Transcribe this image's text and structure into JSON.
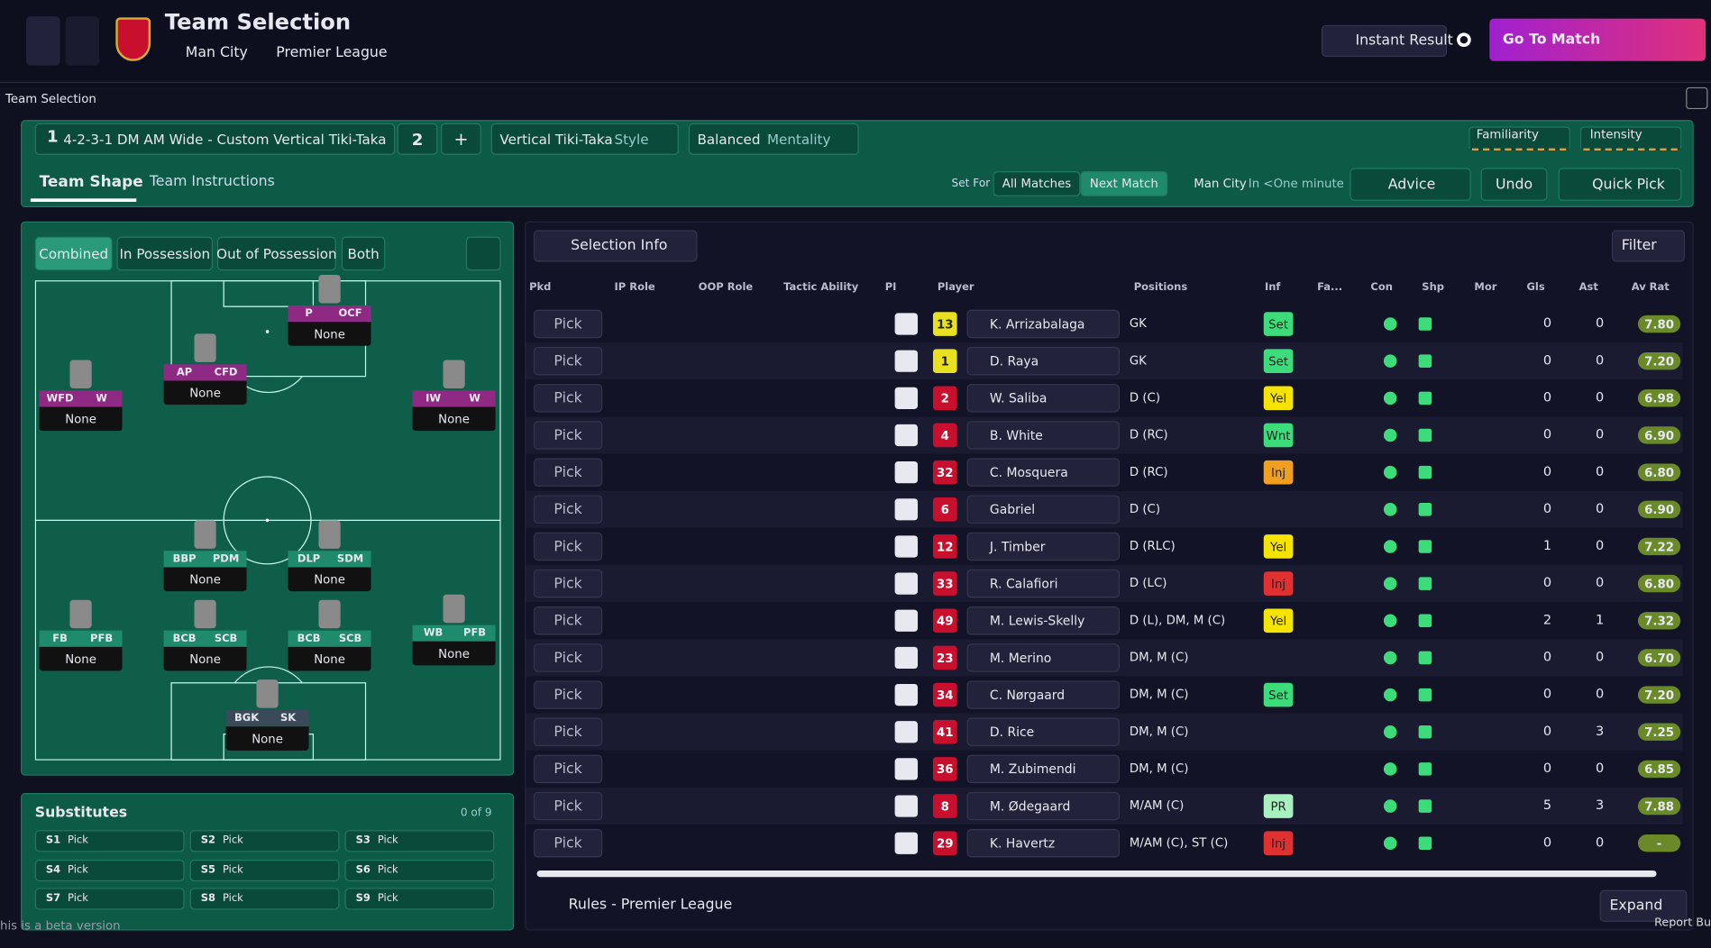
{
  "header": {
    "title": "Team Selection",
    "opponent": "Man City",
    "competition": "Premier League",
    "instant_result": "Instant Result",
    "go_to_match": "Go To Match"
  },
  "panel_title": "Team Selection",
  "tactic": {
    "slot": "1",
    "formation": "4-2-3-1 DM AM Wide - Custom Vertical Tiki-Taka",
    "slot2": "2",
    "add": "+",
    "style": "Vertical Tiki-Taka",
    "style_label": "Style",
    "mentality": "Balanced",
    "mentality_label": "Mentality",
    "familiarity": "Familiarity",
    "intensity": "Intensity"
  },
  "tabs": [
    "Team Shape",
    "Team Instructions"
  ],
  "set_for": {
    "label": "Set For",
    "options": [
      "All Matches",
      "Next Match"
    ]
  },
  "next_opponent": {
    "team": "Man City",
    "time": "In <One minute"
  },
  "buttons": {
    "advice": "Advice",
    "undo": "Undo",
    "quick_pick": "Quick Pick"
  },
  "view_tabs": [
    "Combined",
    "In Possession",
    "Out of Possession",
    "Both"
  ],
  "pitch": {
    "positions": [
      {
        "roles": [
          "P",
          "OCF"
        ],
        "player": "None",
        "color": "#8e2a84"
      },
      {
        "roles": [
          "AP",
          "CFD"
        ],
        "player": "None",
        "color": "#8e2a84"
      },
      {
        "roles": [
          "WFD",
          "W"
        ],
        "player": "None",
        "color": "#8e2a84"
      },
      {
        "roles": [
          "IW",
          "W"
        ],
        "player": "None",
        "color": "#8e2a84"
      },
      {
        "roles": [
          "BBP",
          "PDM"
        ],
        "player": "None",
        "color": "#1f8a6c"
      },
      {
        "roles": [
          "DLP",
          "SDM"
        ],
        "player": "None",
        "color": "#1f8a6c"
      },
      {
        "roles": [
          "FB",
          "PFB"
        ],
        "player": "None",
        "color": "#1f8a6c"
      },
      {
        "roles": [
          "BCB",
          "SCB"
        ],
        "player": "None",
        "color": "#1f8a6c"
      },
      {
        "roles": [
          "BCB",
          "SCB"
        ],
        "player": "None",
        "color": "#1f8a6c"
      },
      {
        "roles": [
          "WB",
          "PFB"
        ],
        "player": "None",
        "color": "#1f8a6c"
      },
      {
        "roles": [
          "BGK",
          "SK"
        ],
        "player": "None",
        "color": "#3a4a58"
      }
    ]
  },
  "substitutes": {
    "title": "Substitutes",
    "count": "0 of 9",
    "slots": [
      {
        "slot": "S1",
        "value": "Pick"
      },
      {
        "slot": "S2",
        "value": "Pick"
      },
      {
        "slot": "S3",
        "value": "Pick"
      },
      {
        "slot": "S4",
        "value": "Pick"
      },
      {
        "slot": "S5",
        "value": "Pick"
      },
      {
        "slot": "S6",
        "value": "Pick"
      },
      {
        "slot": "S7",
        "value": "Pick"
      },
      {
        "slot": "S8",
        "value": "Pick"
      },
      {
        "slot": "S9",
        "value": "Pick"
      }
    ]
  },
  "beta_note": "his is a beta version",
  "selection_info": "Selection Info",
  "filter": "Filter",
  "table": {
    "columns": [
      "Pkd",
      "IP Role",
      "OOP Role",
      "Tactic Ability",
      "PI",
      "Player",
      "Positions",
      "Inf",
      "Fa...",
      "Con",
      "Shp",
      "Mor",
      "Gls",
      "Ast",
      "Av Rat"
    ],
    "rows": [
      {
        "pick": "Pick",
        "number": "13",
        "player": "K. Arrizabalaga",
        "positions": "GK",
        "inf": {
          "label": "Set",
          "color": "#3ddc7a"
        },
        "goals": 0,
        "assists": 0,
        "rating": "7.80"
      },
      {
        "pick": "Pick",
        "number": "1",
        "player": "D. Raya",
        "positions": "GK",
        "inf": {
          "label": "Set",
          "color": "#3ddc7a"
        },
        "goals": 0,
        "assists": 0,
        "rating": "7.20"
      },
      {
        "pick": "Pick",
        "number": "2",
        "player": "W. Saliba",
        "positions": "D (C)",
        "inf": {
          "label": "Yel",
          "color": "#f5e400"
        },
        "goals": 0,
        "assists": 0,
        "rating": "6.98"
      },
      {
        "pick": "Pick",
        "number": "4",
        "player": "B. White",
        "positions": "D (RC)",
        "inf": {
          "label": "Wnt",
          "color": "#3ddc7a"
        },
        "goals": 0,
        "assists": 0,
        "rating": "6.90"
      },
      {
        "pick": "Pick",
        "number": "32",
        "player": "C. Mosquera",
        "positions": "D (RC)",
        "inf": {
          "label": "Inj",
          "color": "#f0a020"
        },
        "goals": 0,
        "assists": 0,
        "rating": "6.80"
      },
      {
        "pick": "Pick",
        "number": "6",
        "player": "Gabriel",
        "positions": "D (C)",
        "goals": 0,
        "assists": 0,
        "rating": "6.90"
      },
      {
        "pick": "Pick",
        "number": "12",
        "player": "J. Timber",
        "positions": "D (RLC)",
        "inf": {
          "label": "Yel",
          "color": "#f5e400"
        },
        "goals": 1,
        "assists": 0,
        "rating": "7.22"
      },
      {
        "pick": "Pick",
        "number": "33",
        "player": "R. Calafiori",
        "positions": "D (LC)",
        "inf": {
          "label": "Inj",
          "color": "#e03030"
        },
        "goals": 0,
        "assists": 0,
        "rating": "6.80"
      },
      {
        "pick": "Pick",
        "number": "49",
        "player": "M. Lewis-Skelly",
        "positions": "D (L), DM, M (C)",
        "inf": {
          "label": "Yel",
          "color": "#f5e400"
        },
        "goals": 2,
        "assists": 1,
        "rating": "7.32"
      },
      {
        "pick": "Pick",
        "number": "23",
        "player": "M. Merino",
        "positions": "DM, M (C)",
        "goals": 0,
        "assists": 0,
        "rating": "6.70"
      },
      {
        "pick": "Pick",
        "number": "34",
        "player": "C. Nørgaard",
        "positions": "DM, M (C)",
        "inf": {
          "label": "Set",
          "color": "#3ddc7a"
        },
        "goals": 0,
        "assists": 0,
        "rating": "7.20"
      },
      {
        "pick": "Pick",
        "number": "41",
        "player": "D. Rice",
        "positions": "DM, M (C)",
        "goals": 0,
        "assists": 3,
        "rating": "7.25"
      },
      {
        "pick": "Pick",
        "number": "36",
        "player": "M. Zubimendi",
        "positions": "DM, M (C)",
        "goals": 0,
        "assists": 0,
        "rating": "6.85"
      },
      {
        "pick": "Pick",
        "number": "8",
        "player": "M. Ødegaard",
        "positions": "M/AM (C)",
        "inf": {
          "label": "PR",
          "color": "#a8f0c0"
        },
        "goals": 5,
        "assists": 3,
        "rating": "7.88"
      },
      {
        "pick": "Pick",
        "number": "29",
        "player": "K. Havertz",
        "positions": "M/AM (C), ST (C)",
        "inf": {
          "label": "Inj",
          "color": "#e03030"
        },
        "goals": 0,
        "assists": 0,
        "rating": "-"
      }
    ]
  },
  "footer": {
    "rules": "Rules - Premier League",
    "expand": "Expand",
    "report_bug": "Report Bug"
  }
}
